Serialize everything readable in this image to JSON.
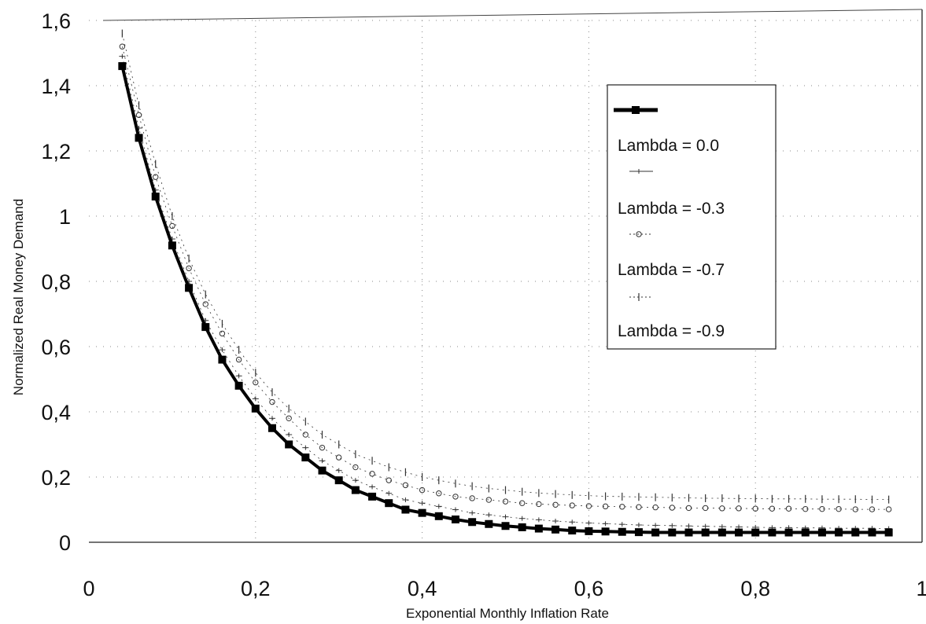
{
  "chart_data": {
    "type": "line",
    "xlabel": "Exponential Monthly Inflation Rate",
    "ylabel": "Normalized Real Money Demand",
    "xlim": [
      0,
      1
    ],
    "ylim": [
      0,
      1.6
    ],
    "x_ticks": [
      "0",
      "0,2",
      "0,4",
      "0,6",
      "0,8",
      "1"
    ],
    "y_ticks": [
      "0",
      "0,2",
      "0,4",
      "0,6",
      "0,8",
      "1",
      "1,2",
      "1,4",
      "1,6"
    ],
    "grid": "dotted",
    "legend_position": "top-right",
    "x": [
      0.04,
      0.06,
      0.08,
      0.1,
      0.12,
      0.14,
      0.16,
      0.18,
      0.2,
      0.22,
      0.24,
      0.26,
      0.28,
      0.3,
      0.32,
      0.34,
      0.36,
      0.38,
      0.4,
      0.42,
      0.44,
      0.46,
      0.48,
      0.5,
      0.52,
      0.54,
      0.56,
      0.58,
      0.6,
      0.62,
      0.64,
      0.66,
      0.68,
      0.7,
      0.72,
      0.74,
      0.76,
      0.78,
      0.8,
      0.82,
      0.84,
      0.86,
      0.88,
      0.9,
      0.92,
      0.94,
      0.96
    ],
    "series": [
      {
        "name": "Lambda = 0.0",
        "marker": "square",
        "color": "#000000",
        "values": [
          1.46,
          1.24,
          1.06,
          0.91,
          0.78,
          0.66,
          0.56,
          0.48,
          0.41,
          0.35,
          0.3,
          0.26,
          0.22,
          0.19,
          0.16,
          0.14,
          0.12,
          0.1,
          0.09,
          0.08,
          0.07,
          0.062,
          0.056,
          0.05,
          0.046,
          0.042,
          0.039,
          0.036,
          0.034,
          0.033,
          0.032,
          0.031,
          0.03,
          0.03,
          0.03,
          0.03,
          0.03,
          0.03,
          0.03,
          0.03,
          0.03,
          0.03,
          0.03,
          0.03,
          0.03,
          0.03,
          0.03
        ]
      },
      {
        "name": "Lambda = -0.3",
        "marker": "plus",
        "color": "#333333",
        "values": [
          1.49,
          1.27,
          1.08,
          0.93,
          0.8,
          0.68,
          0.59,
          0.51,
          0.44,
          0.38,
          0.33,
          0.29,
          0.25,
          0.22,
          0.19,
          0.17,
          0.15,
          0.13,
          0.12,
          0.11,
          0.1,
          0.09,
          0.084,
          0.078,
          0.073,
          0.069,
          0.065,
          0.062,
          0.059,
          0.057,
          0.055,
          0.053,
          0.052,
          0.051,
          0.05,
          0.049,
          0.048,
          0.047,
          0.046,
          0.045,
          0.045,
          0.044,
          0.044,
          0.043,
          0.043,
          0.043,
          0.042
        ]
      },
      {
        "name": "Lambda = -0.7",
        "marker": "circle",
        "color": "#333333",
        "values": [
          1.52,
          1.31,
          1.12,
          0.97,
          0.84,
          0.73,
          0.64,
          0.56,
          0.49,
          0.43,
          0.38,
          0.33,
          0.29,
          0.26,
          0.23,
          0.21,
          0.19,
          0.175,
          0.16,
          0.15,
          0.14,
          0.135,
          0.13,
          0.125,
          0.12,
          0.117,
          0.115,
          0.113,
          0.111,
          0.11,
          0.109,
          0.108,
          0.107,
          0.106,
          0.105,
          0.105,
          0.104,
          0.104,
          0.103,
          0.103,
          0.103,
          0.102,
          0.102,
          0.102,
          0.101,
          0.101,
          0.101
        ]
      },
      {
        "name": "Lambda = -0.9",
        "marker": "bar",
        "color": "#333333",
        "values": [
          1.56,
          1.34,
          1.16,
          1.0,
          0.87,
          0.76,
          0.67,
          0.59,
          0.52,
          0.46,
          0.41,
          0.37,
          0.33,
          0.3,
          0.27,
          0.25,
          0.23,
          0.215,
          0.2,
          0.19,
          0.18,
          0.172,
          0.165,
          0.16,
          0.155,
          0.151,
          0.148,
          0.145,
          0.143,
          0.141,
          0.14,
          0.139,
          0.138,
          0.137,
          0.136,
          0.135,
          0.135,
          0.134,
          0.134,
          0.133,
          0.133,
          0.133,
          0.132,
          0.132,
          0.132,
          0.131,
          0.131
        ]
      }
    ]
  }
}
